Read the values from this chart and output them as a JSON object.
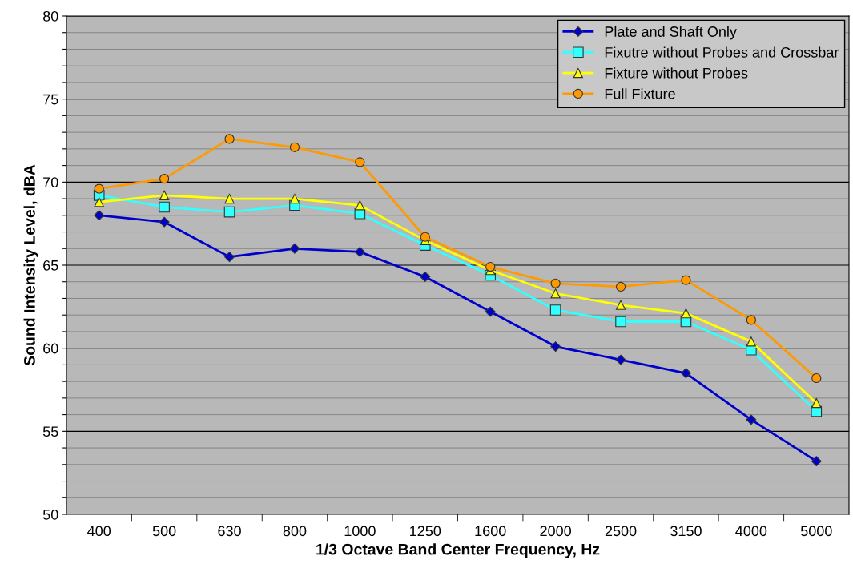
{
  "chart_data": {
    "type": "line",
    "xlabel": "1/3 Octave Band Center Frequency, Hz",
    "ylabel": "Sound Intensity Level, dBA",
    "categories": [
      "400",
      "500",
      "630",
      "800",
      "1000",
      "1250",
      "1600",
      "2000",
      "2500",
      "3150",
      "4000",
      "5000"
    ],
    "series": [
      {
        "name": "Plate and Shaft Only",
        "color": "#0000cc",
        "marker": "diamond",
        "values": [
          68.0,
          67.6,
          65.5,
          66.0,
          65.8,
          64.3,
          62.2,
          60.1,
          59.3,
          58.5,
          55.7,
          53.2
        ]
      },
      {
        "name": "Fixutre without Probes and Crossbar",
        "color": "#33ffff",
        "marker": "square",
        "values": [
          69.2,
          68.5,
          68.2,
          68.6,
          68.1,
          66.2,
          64.4,
          62.3,
          61.6,
          61.6,
          59.9,
          56.2
        ]
      },
      {
        "name": "Fixture without Probes",
        "color": "#ffff00",
        "marker": "triangle",
        "values": [
          68.8,
          69.2,
          69.0,
          69.0,
          68.6,
          66.5,
          64.7,
          63.3,
          62.6,
          62.1,
          60.4,
          56.7
        ]
      },
      {
        "name": "Full Fixture",
        "color": "#ff9900",
        "marker": "circle",
        "values": [
          69.6,
          70.2,
          72.6,
          72.1,
          71.2,
          66.7,
          64.9,
          63.9,
          63.7,
          64.1,
          61.7,
          58.2
        ]
      }
    ],
    "ylim": [
      50,
      80
    ],
    "yticks": [
      50,
      {
        "value": 51,
        "label": null
      },
      {
        "value": 52,
        "label": null
      },
      {
        "value": 53,
        "label": null
      },
      {
        "value": 54,
        "label": null
      },
      55,
      {
        "value": 56,
        "label": null
      },
      {
        "value": 57,
        "label": null
      },
      {
        "value": 58,
        "label": null
      },
      {
        "value": 59,
        "label": null
      },
      60,
      {
        "value": 61,
        "label": null
      },
      {
        "value": 62,
        "label": null
      },
      {
        "value": 63,
        "label": null
      },
      {
        "value": 64,
        "label": null
      },
      65,
      {
        "value": 66,
        "label": null
      },
      {
        "value": 67,
        "label": null
      },
      {
        "value": 68,
        "label": null
      },
      {
        "value": 69,
        "label": null
      },
      70,
      {
        "value": 71,
        "label": null
      },
      {
        "value": 72,
        "label": null
      },
      {
        "value": 73,
        "label": null
      },
      {
        "value": 74,
        "label": null
      },
      75,
      {
        "value": 76,
        "label": null
      },
      {
        "value": 77,
        "label": null
      },
      {
        "value": 78,
        "label": null
      },
      {
        "value": 79,
        "label": null
      },
      80
    ],
    "grid": "y",
    "legend": "top right",
    "line_style": "solid"
  }
}
